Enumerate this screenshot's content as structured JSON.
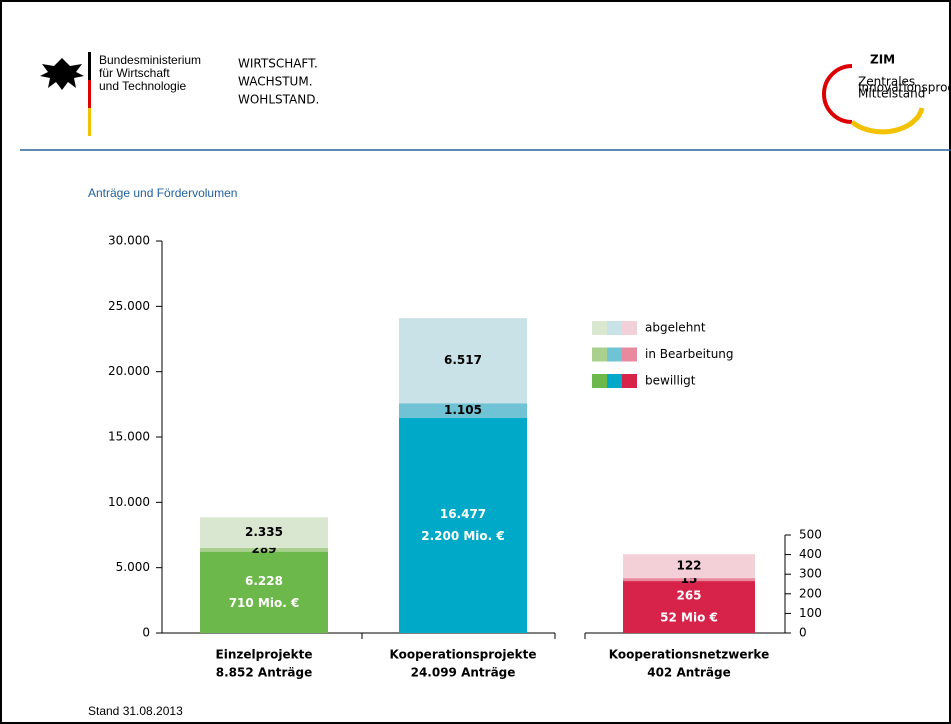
{
  "header": {
    "ministry": [
      "Bundesministerium",
      "für Wirtschaft",
      "und Technologie"
    ],
    "slogan": [
      "WIRTSCHAFT.",
      "WACHSTUM.",
      "WOHLSTAND."
    ],
    "logo": "ZIM",
    "logo_subtitle": [
      "Zentrales",
      "Innovationsprogramm",
      "Mittelstand"
    ]
  },
  "footer": "Stand 31.08.2013",
  "chart_data": [
    {
      "type": "bar",
      "stacked": true,
      "title": "Anträge und Fördervolumen",
      "categories": [
        "Einzelprojekte",
        "Kooperationsprojekte"
      ],
      "category_sublabels": [
        "8.852 Anträge",
        "24.099 Anträge"
      ],
      "ylim": [
        0,
        30000
      ],
      "yticks": [
        {
          "value": 0,
          "label": "0"
        },
        {
          "value": 5000,
          "label": "5.000"
        },
        {
          "value": 10000,
          "label": "10.000"
        },
        {
          "value": 15000,
          "label": "15.000"
        },
        {
          "value": 20000,
          "label": "20.000"
        },
        {
          "value": 25000,
          "label": "25.000"
        },
        {
          "value": 30000,
          "label": "30.000"
        }
      ],
      "series": [
        {
          "name": "bewilligt",
          "colors": [
            "#6cb84a",
            "#00a9c7"
          ],
          "values": [
            6228,
            16477
          ],
          "value_labels": [
            "6.228",
            "16.477"
          ],
          "value_notes": [
            "710 Mio. €",
            "2.200 Mio. €"
          ]
        },
        {
          "name": "in Bearbeitung",
          "colors": [
            "#a9d08e",
            "#70c3d4"
          ],
          "values": [
            289,
            1105
          ],
          "value_labels": [
            "289",
            "1.105"
          ]
        },
        {
          "name": "abgelehnt",
          "colors": [
            "#d9e6d0",
            "#c8e2e8"
          ],
          "values": [
            2335,
            6517
          ],
          "value_labels": [
            "2.335",
            "6.517"
          ]
        }
      ],
      "legend": "right",
      "legend_colors": [
        [
          "#6cb84a",
          "#00a9c7",
          "#d7234a"
        ],
        [
          "#a9d08e",
          "#70c3d4",
          "#e9899d"
        ],
        [
          "#d9e6d0",
          "#c8e2e8",
          "#f3d0d8"
        ]
      ]
    },
    {
      "type": "bar",
      "stacked": true,
      "categories": [
        "Kooperationsnetzwerke"
      ],
      "category_sublabels": [
        "402 Anträge"
      ],
      "ylim": [
        0,
        500
      ],
      "yticks": [
        0,
        100,
        200,
        300,
        400,
        500
      ],
      "series": [
        {
          "colors": [
            "#d7234a"
          ],
          "values": [
            265
          ],
          "value_labels": [
            "265"
          ],
          "value_notes": [
            "52 Mio €"
          ]
        },
        {
          "colors": [
            "#e9899d"
          ],
          "values": [
            15
          ],
          "value_labels": [
            "15"
          ]
        },
        {
          "colors": [
            "#f3d0d8"
          ],
          "values": [
            122
          ],
          "value_labels": [
            "122"
          ]
        }
      ]
    }
  ]
}
